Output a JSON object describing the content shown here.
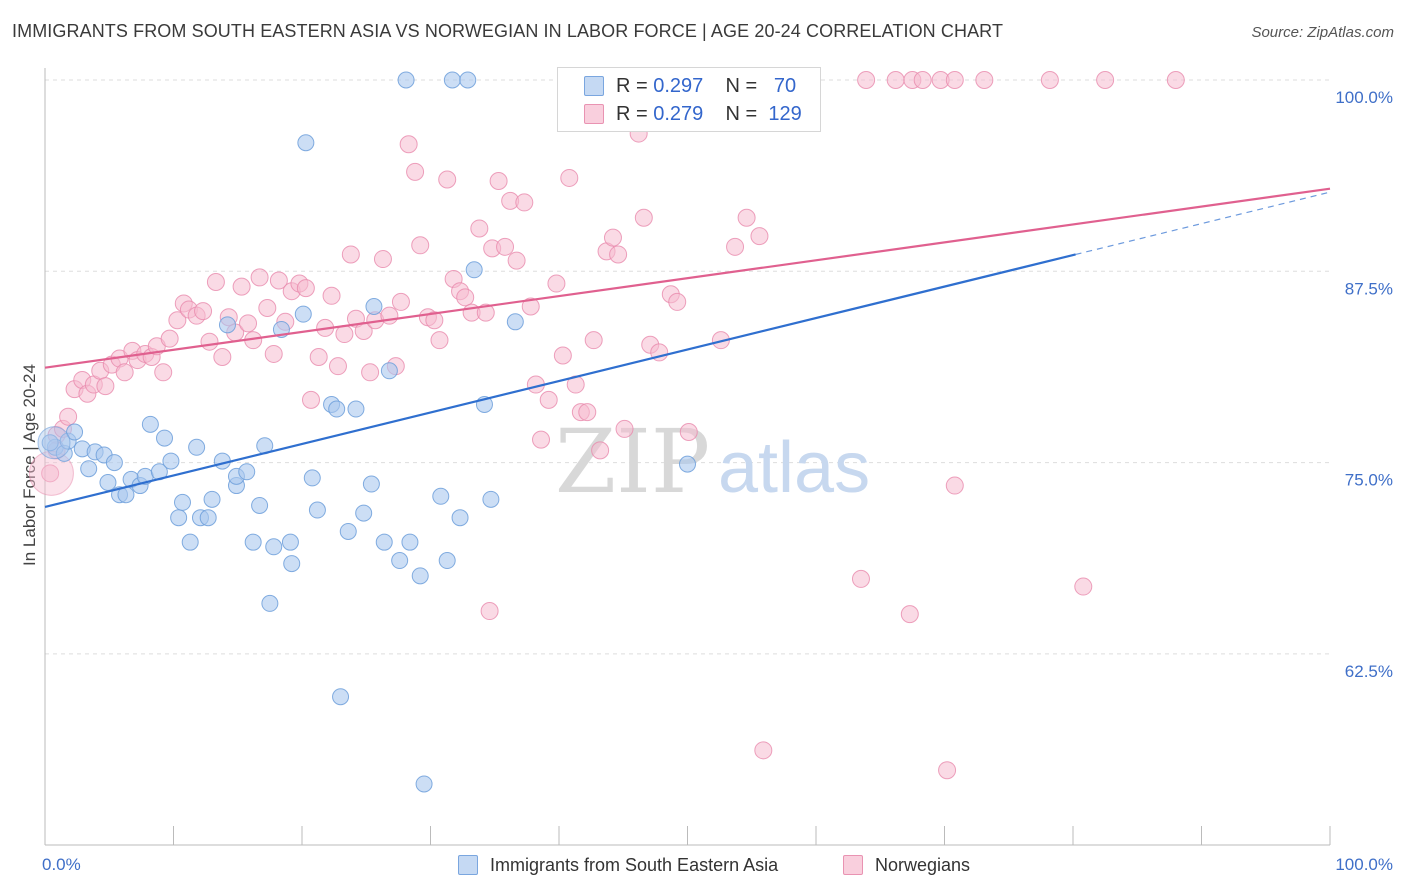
{
  "title": "IMMIGRANTS FROM SOUTH EASTERN ASIA VS NORWEGIAN IN LABOR FORCE | AGE 20-24 CORRELATION CHART",
  "source": "Source: ZipAtlas.com",
  "watermark": {
    "zip": "ZIP",
    "atlas": "atlas"
  },
  "colors": {
    "blue_fill": "#aac8ee",
    "blue_stroke": "#6d9fdb",
    "blue_line": "#2f6fcf",
    "pink_fill": "#f6bcd0",
    "pink_stroke": "#e88aac",
    "pink_line": "#e0608f",
    "tick_label": "#3f6fc8",
    "grid": "#dddddd"
  },
  "legend_top": [
    {
      "r_label": "R =",
      "r_value": "0.297",
      "n_label": "N =",
      "n_value": "70"
    },
    {
      "r_label": "R =",
      "r_value": "0.279",
      "n_label": "N =",
      "n_value": "129"
    }
  ],
  "chart_data": {
    "type": "scatter",
    "title": "IMMIGRANTS FROM SOUTH EASTERN ASIA VS NORWEGIAN IN LABOR FORCE | AGE 20-24 CORRELATION CHART",
    "xlabel": "",
    "ylabel": "In Labor Force | Age 20-24",
    "xlim": [
      0,
      100
    ],
    "ylim": [
      50,
      101
    ],
    "x_tick_labels": [
      "0.0%",
      "100.0%"
    ],
    "y_ticks": [
      62.5,
      75.0,
      87.5,
      100.0
    ],
    "y_tick_labels": [
      "62.5%",
      "75.0%",
      "87.5%",
      "100.0%"
    ],
    "grid": true,
    "legend_position": "bottom",
    "series": [
      {
        "name": "Immigrants from South Eastern Asia",
        "color": "blue",
        "r": 0.297,
        "n": 70,
        "trend": {
          "x": [
            0,
            80.2
          ],
          "y": [
            72.1,
            88.6
          ]
        },
        "points": [
          [
            0.8,
            76.0
          ],
          [
            1.5,
            75.6
          ],
          [
            1.8,
            76.4
          ],
          [
            2.3,
            77.0
          ],
          [
            2.9,
            75.9
          ],
          [
            3.4,
            74.6
          ],
          [
            3.9,
            75.7
          ],
          [
            4.6,
            75.5
          ],
          [
            4.9,
            73.7
          ],
          [
            5.4,
            75.0
          ],
          [
            5.8,
            72.9
          ],
          [
            6.3,
            72.9
          ],
          [
            6.7,
            73.9
          ],
          [
            7.4,
            73.5
          ],
          [
            7.8,
            74.1
          ],
          [
            8.2,
            77.5
          ],
          [
            8.9,
            74.4
          ],
          [
            9.3,
            76.6
          ],
          [
            9.8,
            75.1
          ],
          [
            10.4,
            71.4
          ],
          [
            10.7,
            72.4
          ],
          [
            11.3,
            69.8
          ],
          [
            11.8,
            76.0
          ],
          [
            12.1,
            71.4
          ],
          [
            12.7,
            71.4
          ],
          [
            13.0,
            72.6
          ],
          [
            13.8,
            75.1
          ],
          [
            14.2,
            84.0
          ],
          [
            14.9,
            73.5
          ],
          [
            14.9,
            74.1
          ],
          [
            15.7,
            74.4
          ],
          [
            16.2,
            69.8
          ],
          [
            16.7,
            72.2
          ],
          [
            17.1,
            76.1
          ],
          [
            17.5,
            65.8
          ],
          [
            17.8,
            69.5
          ],
          [
            18.4,
            83.7
          ],
          [
            19.1,
            69.8
          ],
          [
            19.2,
            68.4
          ],
          [
            20.1,
            84.7
          ],
          [
            20.3,
            95.9
          ],
          [
            20.8,
            74.0
          ],
          [
            21.2,
            71.9
          ],
          [
            22.3,
            78.8
          ],
          [
            22.7,
            78.5
          ],
          [
            23.0,
            59.7
          ],
          [
            23.6,
            70.5
          ],
          [
            24.2,
            78.5
          ],
          [
            24.8,
            71.7
          ],
          [
            25.4,
            73.6
          ],
          [
            25.6,
            85.2
          ],
          [
            26.4,
            69.8
          ],
          [
            26.8,
            81.0
          ],
          [
            27.6,
            68.6
          ],
          [
            28.1,
            100.0
          ],
          [
            28.4,
            69.8
          ],
          [
            29.2,
            67.6
          ],
          [
            29.5,
            54.0
          ],
          [
            30.8,
            72.8
          ],
          [
            31.3,
            68.6
          ],
          [
            31.7,
            100.0
          ],
          [
            32.3,
            71.4
          ],
          [
            32.9,
            100.0
          ],
          [
            33.4,
            87.6
          ],
          [
            34.2,
            78.8
          ],
          [
            34.7,
            72.6
          ],
          [
            36.6,
            84.2
          ],
          [
            50.0,
            74.9
          ],
          [
            56.0,
            100.0
          ],
          [
            0.4,
            76.3
          ]
        ]
      },
      {
        "name": "Norwegians",
        "color": "pink",
        "r": 0.279,
        "n": 129,
        "trend": {
          "x": [
            0,
            100
          ],
          "y": [
            81.2,
            92.9
          ]
        },
        "points": [
          [
            0.4,
            74.3
          ],
          [
            0.9,
            76.8
          ],
          [
            1.4,
            77.2
          ],
          [
            1.8,
            78.0
          ],
          [
            2.3,
            79.8
          ],
          [
            2.9,
            80.4
          ],
          [
            3.3,
            79.5
          ],
          [
            3.8,
            80.1
          ],
          [
            4.3,
            81.0
          ],
          [
            4.7,
            80.0
          ],
          [
            5.2,
            81.4
          ],
          [
            5.8,
            81.8
          ],
          [
            6.2,
            80.9
          ],
          [
            6.8,
            82.3
          ],
          [
            7.2,
            81.7
          ],
          [
            7.8,
            82.1
          ],
          [
            8.3,
            81.9
          ],
          [
            8.7,
            82.6
          ],
          [
            9.2,
            80.9
          ],
          [
            9.7,
            83.1
          ],
          [
            10.3,
            84.3
          ],
          [
            10.8,
            85.4
          ],
          [
            11.2,
            85.0
          ],
          [
            11.8,
            84.6
          ],
          [
            12.3,
            84.9
          ],
          [
            12.8,
            82.9
          ],
          [
            13.3,
            86.8
          ],
          [
            13.8,
            81.9
          ],
          [
            14.3,
            84.5
          ],
          [
            14.8,
            83.5
          ],
          [
            15.3,
            86.5
          ],
          [
            15.8,
            84.1
          ],
          [
            16.2,
            83.0
          ],
          [
            16.7,
            87.1
          ],
          [
            17.3,
            85.1
          ],
          [
            17.8,
            82.1
          ],
          [
            18.2,
            86.9
          ],
          [
            18.7,
            84.2
          ],
          [
            19.2,
            86.2
          ],
          [
            19.8,
            86.7
          ],
          [
            20.3,
            86.4
          ],
          [
            20.7,
            79.1
          ],
          [
            21.3,
            81.9
          ],
          [
            21.8,
            83.8
          ],
          [
            22.3,
            85.9
          ],
          [
            22.8,
            81.3
          ],
          [
            23.3,
            83.4
          ],
          [
            23.8,
            88.6
          ],
          [
            24.2,
            84.4
          ],
          [
            24.8,
            83.6
          ],
          [
            25.3,
            80.9
          ],
          [
            25.7,
            84.3
          ],
          [
            26.3,
            88.3
          ],
          [
            26.8,
            84.6
          ],
          [
            27.3,
            81.3
          ],
          [
            27.7,
            85.5
          ],
          [
            28.3,
            95.8
          ],
          [
            28.8,
            94.0
          ],
          [
            29.2,
            89.2
          ],
          [
            29.8,
            84.5
          ],
          [
            30.3,
            84.3
          ],
          [
            30.7,
            83.0
          ],
          [
            31.3,
            93.5
          ],
          [
            31.8,
            87.0
          ],
          [
            32.3,
            86.2
          ],
          [
            32.7,
            85.8
          ],
          [
            33.2,
            84.8
          ],
          [
            33.8,
            90.3
          ],
          [
            34.3,
            84.8
          ],
          [
            34.8,
            89.0
          ],
          [
            35.3,
            93.4
          ],
          [
            35.8,
            89.1
          ],
          [
            36.2,
            92.1
          ],
          [
            36.7,
            88.2
          ],
          [
            37.3,
            92.0
          ],
          [
            37.8,
            85.2
          ],
          [
            38.2,
            80.1
          ],
          [
            38.6,
            76.5
          ],
          [
            39.2,
            79.1
          ],
          [
            39.8,
            86.7
          ],
          [
            40.3,
            82.0
          ],
          [
            40.8,
            93.6
          ],
          [
            41.3,
            80.1
          ],
          [
            41.7,
            78.3
          ],
          [
            42.2,
            78.3
          ],
          [
            42.7,
            83.0
          ],
          [
            43.2,
            75.8
          ],
          [
            43.7,
            88.8
          ],
          [
            44.2,
            89.7
          ],
          [
            44.6,
            88.6
          ],
          [
            45.1,
            77.2
          ],
          [
            45.6,
            100.0
          ],
          [
            46.2,
            96.5
          ],
          [
            46.6,
            91.0
          ],
          [
            47.1,
            82.7
          ],
          [
            47.8,
            82.2
          ],
          [
            48.2,
            100.0
          ],
          [
            48.7,
            86.0
          ],
          [
            49.2,
            85.5
          ],
          [
            50.1,
            77.0
          ],
          [
            50.9,
            100.0
          ],
          [
            51.2,
            100.0
          ],
          [
            52.6,
            83.0
          ],
          [
            53.7,
            89.1
          ],
          [
            54.6,
            91.0
          ],
          [
            55.1,
            100.0
          ],
          [
            55.6,
            89.8
          ],
          [
            56.5,
            100.0
          ],
          [
            57.4,
            100.0
          ],
          [
            58.0,
            100.0
          ],
          [
            58.4,
            100.0
          ],
          [
            63.9,
            100.0
          ],
          [
            66.2,
            100.0
          ],
          [
            67.5,
            100.0
          ],
          [
            68.3,
            100.0
          ],
          [
            69.7,
            100.0
          ],
          [
            70.8,
            100.0
          ],
          [
            73.1,
            100.0
          ],
          [
            78.2,
            100.0
          ],
          [
            82.5,
            100.0
          ],
          [
            88.0,
            100.0
          ],
          [
            63.5,
            67.4
          ],
          [
            67.3,
            65.1
          ],
          [
            70.8,
            73.5
          ],
          [
            80.8,
            66.9
          ],
          [
            34.6,
            65.3
          ],
          [
            55.9,
            56.2
          ],
          [
            70.2,
            54.9
          ],
          [
            0.9,
            75.8
          ]
        ]
      }
    ]
  },
  "bottom_legend": [
    {
      "label": "Immigrants from South Eastern Asia"
    },
    {
      "label": "Norwegians"
    }
  ]
}
